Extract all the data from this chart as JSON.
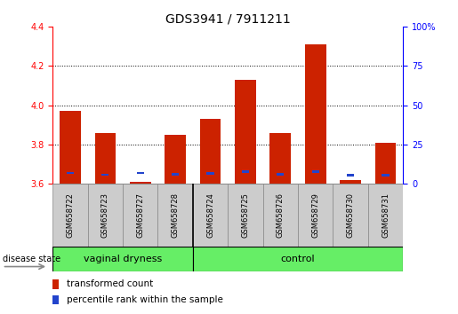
{
  "title": "GDS3941 / 7911211",
  "samples": [
    "GSM658722",
    "GSM658723",
    "GSM658727",
    "GSM658728",
    "GSM658724",
    "GSM658725",
    "GSM658726",
    "GSM658729",
    "GSM658730",
    "GSM658731"
  ],
  "red_values": [
    3.97,
    3.86,
    3.61,
    3.85,
    3.93,
    4.13,
    3.86,
    4.31,
    3.62,
    3.81
  ],
  "blue_values": [
    3.655,
    3.645,
    3.655,
    3.648,
    3.652,
    3.66,
    3.648,
    3.66,
    3.642,
    3.642
  ],
  "ylim_left": [
    3.6,
    4.4
  ],
  "ylim_right": [
    0,
    100
  ],
  "yticks_left": [
    3.6,
    3.8,
    4.0,
    4.2,
    4.4
  ],
  "yticks_right": [
    0,
    25,
    50,
    75,
    100
  ],
  "ytick_labels_right": [
    "0",
    "25",
    "50",
    "75",
    "100%"
  ],
  "group_labels": [
    "vaginal dryness",
    "control"
  ],
  "group_split": 4,
  "bar_color_red": "#cc2200",
  "bar_color_blue": "#2244cc",
  "group_color": "#66ee66",
  "bar_width": 0.6,
  "base_value": 3.6,
  "legend_items": [
    "transformed count",
    "percentile rank within the sample"
  ],
  "disease_state_label": "disease state",
  "title_fontsize": 10,
  "tick_fontsize": 7,
  "label_fontsize": 7,
  "group_fontsize": 8,
  "legend_fontsize": 7.5
}
